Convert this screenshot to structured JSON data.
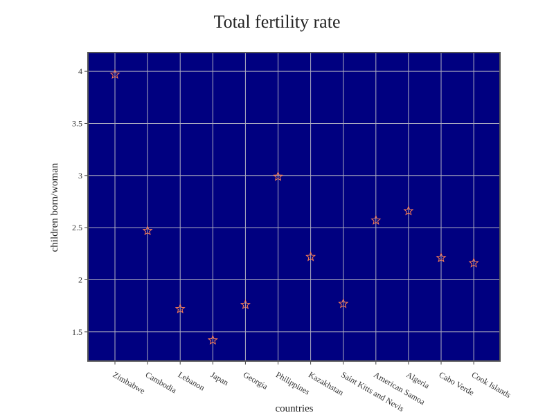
{
  "chart_data": {
    "type": "scatter",
    "title": "Total fertility rate",
    "xlabel": "countries",
    "ylabel": "children born/woman",
    "categories": [
      "Zimbabwe",
      "Cambodia",
      "Lebanon",
      "Japan",
      "Georgia",
      "Philippines",
      "Kazakhstan",
      "Saint Kitts and Nevis",
      "American Samoa",
      "Algeria",
      "Cabo Verde",
      "Cook Islands"
    ],
    "values": [
      3.97,
      2.47,
      1.72,
      1.42,
      1.76,
      2.99,
      2.22,
      1.77,
      2.57,
      2.66,
      2.21,
      2.16
    ],
    "ylim": [
      1.22,
      4.18
    ],
    "yticks": [
      "1.5",
      "2",
      "2.5",
      "3",
      "3.5",
      "4"
    ],
    "grid": true,
    "marker": "star",
    "colors": {
      "plot_background": "#000080",
      "grid": "#b0b0c0",
      "marker_stroke": "#ff7f50",
      "frame": "#555555"
    }
  }
}
